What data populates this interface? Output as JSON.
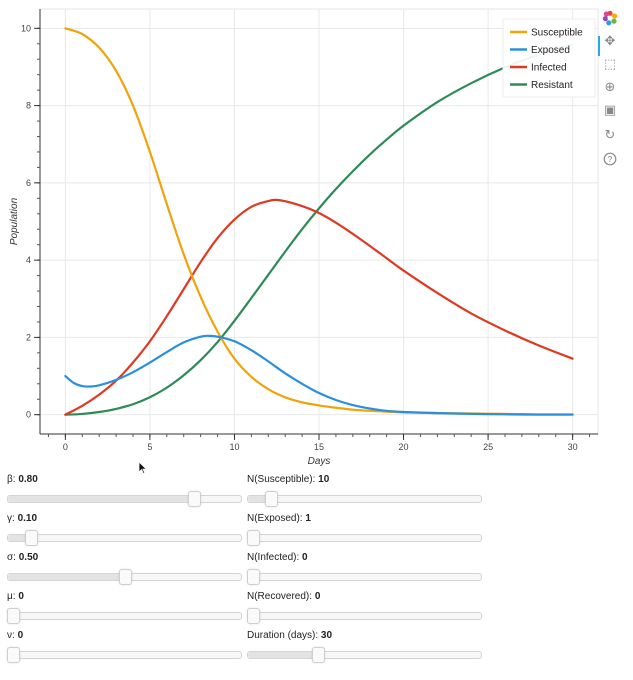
{
  "chart_data": {
    "type": "line",
    "xlabel": "Days",
    "ylabel": "Population",
    "xlim": [
      -1.5,
      31.5
    ],
    "ylim": [
      -0.5,
      10.5
    ],
    "xticks": [
      0,
      5,
      10,
      15,
      20,
      25,
      30
    ],
    "yticks": [
      0,
      2,
      4,
      6,
      8,
      10
    ],
    "grid": true,
    "legend_position": "top-right",
    "series": [
      {
        "name": "Susceptible",
        "color": "#f0a30a",
        "x": [
          0,
          1,
          2,
          3,
          4,
          5,
          6,
          7,
          8,
          9,
          10,
          11,
          12,
          13,
          14,
          15,
          16,
          17,
          18,
          19,
          20,
          22,
          24,
          26,
          28,
          30
        ],
        "y": [
          10.0,
          9.85,
          9.5,
          8.9,
          8.0,
          6.8,
          5.45,
          4.15,
          3.05,
          2.15,
          1.45,
          0.98,
          0.66,
          0.45,
          0.32,
          0.24,
          0.18,
          0.13,
          0.1,
          0.08,
          0.06,
          0.04,
          0.03,
          0.02,
          0.01,
          0.01
        ]
      },
      {
        "name": "Exposed",
        "color": "#2b8fe0",
        "x": [
          0,
          0.5,
          1,
          1.5,
          2,
          3,
          4,
          5,
          6,
          7,
          8,
          8.5,
          9,
          10,
          11,
          12,
          13,
          14,
          15,
          16,
          17,
          18,
          19,
          20,
          22,
          24,
          26,
          28,
          30
        ],
        "y": [
          1.0,
          0.82,
          0.74,
          0.73,
          0.76,
          0.9,
          1.1,
          1.35,
          1.62,
          1.87,
          2.02,
          2.04,
          2.02,
          1.9,
          1.67,
          1.38,
          1.07,
          0.8,
          0.56,
          0.38,
          0.25,
          0.16,
          0.1,
          0.07,
          0.04,
          0.02,
          0.01,
          0.0,
          0.0
        ]
      },
      {
        "name": "Infected",
        "color": "#dd3a22",
        "x": [
          0,
          1,
          2,
          3,
          4,
          5,
          6,
          7,
          8,
          9,
          10,
          11,
          12,
          12.7,
          14,
          15,
          16,
          17,
          18,
          19,
          20,
          22,
          24,
          26,
          28,
          30
        ],
        "y": [
          0.0,
          0.23,
          0.52,
          0.88,
          1.35,
          1.9,
          2.55,
          3.25,
          3.95,
          4.57,
          5.05,
          5.38,
          5.53,
          5.55,
          5.4,
          5.22,
          4.97,
          4.68,
          4.37,
          4.05,
          3.73,
          3.15,
          2.62,
          2.18,
          1.79,
          1.45
        ]
      },
      {
        "name": "Resistant",
        "color": "#2e8b57",
        "x": [
          0,
          1,
          2,
          3,
          4,
          5,
          6,
          7,
          8,
          9,
          10,
          11,
          12,
          13,
          14,
          15,
          16,
          17,
          18,
          19,
          20,
          22,
          24,
          26,
          28,
          30
        ],
        "y": [
          0.0,
          0.02,
          0.07,
          0.15,
          0.27,
          0.45,
          0.7,
          1.02,
          1.41,
          1.88,
          2.43,
          3.02,
          3.62,
          4.22,
          4.8,
          5.34,
          5.84,
          6.3,
          6.73,
          7.12,
          7.48,
          8.09,
          8.58,
          8.99,
          9.32,
          9.59
        ]
      }
    ]
  },
  "toolbar": {
    "items": [
      {
        "name": "bokeh-logo-icon",
        "glyph": "✿"
      },
      {
        "name": "pan-icon",
        "glyph": "✥"
      },
      {
        "name": "box-zoom-icon",
        "glyph": "⬚"
      },
      {
        "name": "wheel-zoom-icon",
        "glyph": "⊕"
      },
      {
        "name": "save-icon",
        "glyph": "▣"
      },
      {
        "name": "reset-icon",
        "glyph": "↻"
      },
      {
        "name": "help-icon",
        "glyph": "?"
      }
    ]
  },
  "controls": [
    {
      "name": "beta-slider",
      "label": "β: ",
      "value": "0.80",
      "fraction": 0.8
    },
    {
      "name": "n-susceptible-slider",
      "label": "N(Susceptible): ",
      "value": "10",
      "fraction": 0.1
    },
    {
      "name": "gamma-slider",
      "label": "γ: ",
      "value": "0.10",
      "fraction": 0.1
    },
    {
      "name": "n-exposed-slider",
      "label": "N(Exposed): ",
      "value": "1",
      "fraction": 0.01
    },
    {
      "name": "sigma-slider",
      "label": "σ: ",
      "value": "0.50",
      "fraction": 0.5
    },
    {
      "name": "n-infected-slider",
      "label": "N(Infected): ",
      "value": "0",
      "fraction": 0.0
    },
    {
      "name": "mu-slider",
      "label": "μ: ",
      "value": "0",
      "fraction": 0.0
    },
    {
      "name": "n-recovered-slider",
      "label": "N(Recovered): ",
      "value": "0",
      "fraction": 0.0
    },
    {
      "name": "nu-slider",
      "label": "ν: ",
      "value": "0",
      "fraction": 0.0
    },
    {
      "name": "duration-slider",
      "label": "Duration (days): ",
      "value": "30",
      "fraction": 0.3
    }
  ]
}
